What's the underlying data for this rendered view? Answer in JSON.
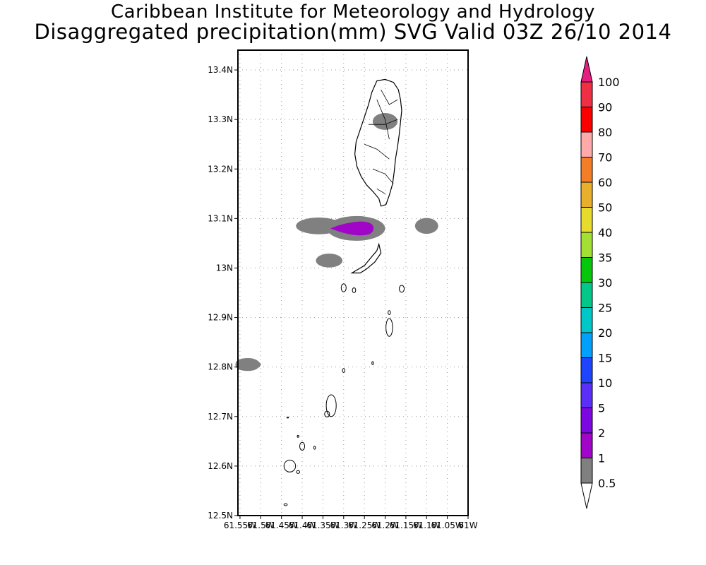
{
  "header": {
    "title": "Caribbean Institute for Meteorology and Hydrology",
    "subtitle": "Disaggregated precipitation(mm) SVG Valid 03Z 26/10 2014"
  },
  "map": {
    "lat_labels": [
      "13.4N",
      "13.3N",
      "13.2N",
      "13.1N",
      "13N",
      "12.9N",
      "12.8N",
      "12.7N",
      "12.6N",
      "12.5N"
    ],
    "lat_values": [
      13.4,
      13.3,
      13.2,
      13.1,
      13.0,
      12.9,
      12.8,
      12.7,
      12.6,
      12.5
    ],
    "lon_labels": [
      "61.55W",
      "61.5W",
      "61.45W",
      "61.4W",
      "61.35W",
      "61.3W",
      "61.25W",
      "61.2W",
      "61.15W",
      "61.1W",
      "61.05W",
      "61W"
    ],
    "lon_values": [
      -61.55,
      -61.5,
      -61.45,
      -61.4,
      -61.35,
      -61.3,
      -61.25,
      -61.2,
      -61.15,
      -61.1,
      -61.05,
      -61.0
    ],
    "lat_range": [
      12.5,
      13.44
    ],
    "lon_range": [
      -61.555,
      -61.0
    ],
    "grid": true,
    "precip_areas": [
      {
        "name": "saint-vincent-north",
        "level": "0.5-1",
        "lon": -61.2,
        "lat": 13.296,
        "rlon": 0.03,
        "rlat": 0.017
      },
      {
        "name": "band-west",
        "level": "0.5-1",
        "lon": -61.36,
        "lat": 13.085,
        "rlon": 0.055,
        "rlat": 0.017
      },
      {
        "name": "band-center",
        "level": "0.5-1",
        "lon": -61.27,
        "lat": 13.08,
        "rlon": 0.07,
        "rlat": 0.025
      },
      {
        "name": "band-core",
        "level": "1-2",
        "lon": -61.28,
        "lat": 13.08,
        "rlon": 0.052,
        "rlat": 0.014
      },
      {
        "name": "east-blob",
        "level": "0.5-1",
        "lon": -61.1,
        "lat": 13.085,
        "rlon": 0.028,
        "rlat": 0.016
      },
      {
        "name": "bequia-west-blob",
        "level": "0.5-1",
        "lon": -61.335,
        "lat": 13.015,
        "rlon": 0.032,
        "rlat": 0.014
      },
      {
        "name": "southwest-blob",
        "level": "0.5-1",
        "lon": -61.53,
        "lat": 12.805,
        "rlon": 0.031,
        "rlat": 0.013
      }
    ]
  },
  "legend": {
    "labels": [
      "100",
      "90",
      "80",
      "70",
      "60",
      "50",
      "40",
      "35",
      "30",
      "25",
      "20",
      "15",
      "10",
      "5",
      "2",
      "1",
      "0.5"
    ],
    "colors": [
      "#ef2f44",
      "#fb0000",
      "#ffaaaa",
      "#f37e27",
      "#e8af2d",
      "#e7db2e",
      "#a3e033",
      "#06c70c",
      "#04c88a",
      "#00c8c8",
      "#02a0fa",
      "#1f44fd",
      "#5b2ff8",
      "#7c07e1",
      "#a005c8",
      "#808080"
    ],
    "top_arrow_color": "#e61e82",
    "bottom_arrow_color": "#ffffff"
  },
  "colors": {
    "precip_0_5_1": "#808080",
    "precip_1_2": "#a005c8"
  }
}
